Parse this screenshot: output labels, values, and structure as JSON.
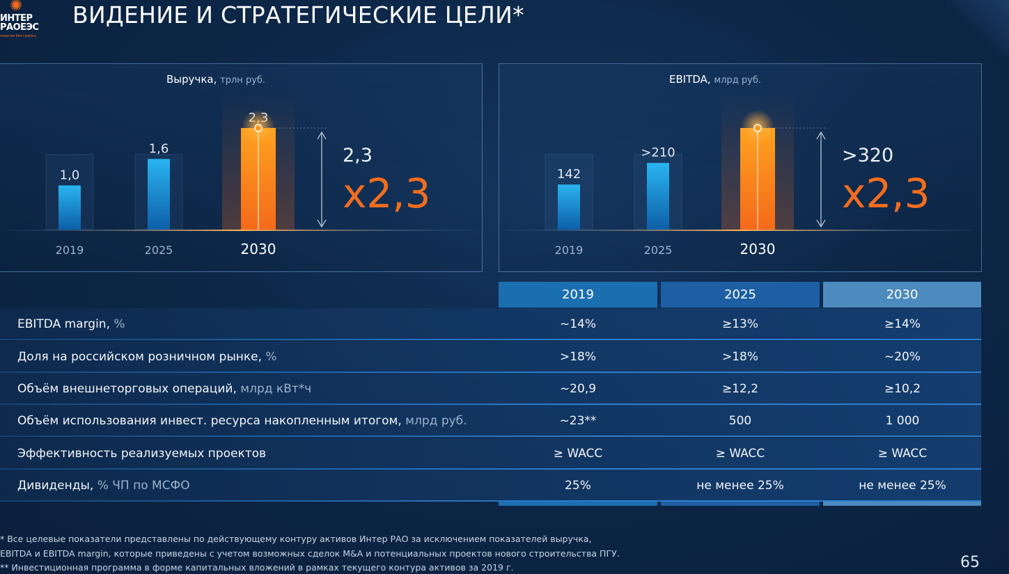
{
  "logo": {
    "line1": "ИНТЕР",
    "line2": "РАОЕЭС",
    "tagline": "энергия без границ"
  },
  "title": "ВИДЕНИЕ И СТРАТЕГИЧЕСКИЕ ЦЕЛИ*",
  "colors": {
    "accent_orange": "#f36d1e",
    "bar_blue": "#1ea3e6",
    "bar_orange": "#ff8a1c",
    "header_2019": "#1a6fb0",
    "header_2025": "#1d5fa3",
    "header_2030": "#4d8bbf"
  },
  "chart_data": [
    {
      "type": "bar",
      "title": "Выручка,",
      "unit": "трлн руб.",
      "categories": [
        "2019",
        "2025",
        "2030"
      ],
      "values": [
        1.0,
        1.6,
        2.3
      ],
      "value_labels": [
        "1,0",
        "1,6",
        "2,3"
      ],
      "growth_label": "2,3",
      "multiplier": "x2,3",
      "highlight": "2030"
    },
    {
      "type": "bar",
      "title": "EBITDA,",
      "unit": "млрд руб.",
      "categories": [
        "2019",
        "2025",
        "2030"
      ],
      "values": [
        142,
        210,
        320
      ],
      "value_labels": [
        "142",
        ">210",
        ""
      ],
      "growth_label": ">320",
      "multiplier": "x2,3",
      "highlight": "2030"
    }
  ],
  "table": {
    "columns": [
      "2019",
      "2025",
      "2030"
    ],
    "rows": [
      {
        "label": "EBITDA margin,",
        "unit": " %",
        "values": [
          "~14%",
          "≥13%",
          "≥14%"
        ]
      },
      {
        "label": "Доля на российском розничном рынке,",
        "unit": " %",
        "values": [
          ">18%",
          ">18%",
          "~20%"
        ]
      },
      {
        "label": "Объём внешнеторговых операций,",
        "unit": " млрд кВт*ч",
        "values": [
          "~20,9",
          "≥12,2",
          "≥10,2"
        ]
      },
      {
        "label": "Объём использования инвест. ресурса накопленным итогом,",
        "unit": " млрд руб.",
        "values": [
          "~23**",
          "500",
          "1 000"
        ]
      },
      {
        "label": "Эффективность реализуемых проектов",
        "unit": "",
        "values": [
          "≥ WACC",
          "≥ WACC",
          "≥ WACC"
        ]
      },
      {
        "label": "Дивиденды,",
        "unit": " % ЧП по МСФО",
        "values": [
          "25%",
          "не менее 25%",
          "не менее 25%"
        ]
      }
    ]
  },
  "footnotes": [
    "* Все целевые показатели представлены по действующему контуру активов Интер РАО за исключением показателей выручка,",
    "EBITDA и EBITDA margin, которые приведены с учетом возможных сделок M&A и потенциальных проектов нового строительства ПГУ.",
    "** Инвестиционная программа в форме капитальных вложений в рамках текущего контура активов  за 2019 г."
  ],
  "page_number": "65"
}
